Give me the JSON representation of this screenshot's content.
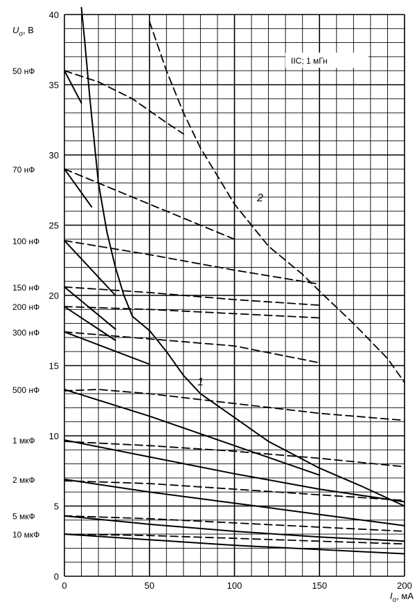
{
  "chart_data": {
    "type": "line",
    "y_axis_label": {
      "main": "U",
      "sub": "o",
      "unit": ", В"
    },
    "x_axis_label": {
      "main": "I",
      "sub": "o",
      "unit": ", мА"
    },
    "xlim": [
      0,
      200
    ],
    "ylim": [
      0,
      40
    ],
    "x_ticks": [
      "0",
      "50",
      "100",
      "150",
      "200"
    ],
    "y_ticks": [
      "0",
      "5",
      "10",
      "15",
      "20",
      "25",
      "30",
      "35",
      "40"
    ],
    "grid": true,
    "legend_box": "IIC; 1 мГн",
    "curve_labels": [
      "1",
      "2"
    ],
    "capacitance_labels": [
      {
        "text": "50 нФ",
        "y": 36.0
      },
      {
        "text": "70 нФ",
        "y": 29.0
      },
      {
        "text": "100 нФ",
        "y": 23.9
      },
      {
        "text": "150 нФ",
        "y": 20.6
      },
      {
        "text": "200 нФ",
        "y": 19.2
      },
      {
        "text": "300 нФ",
        "y": 17.4
      },
      {
        "text": "500 нФ",
        "y": 13.3
      },
      {
        "text": "1 мкФ",
        "y": 9.7
      },
      {
        "text": "2 мкФ",
        "y": 6.9
      },
      {
        "text": "5 мкФ",
        "y": 4.3
      },
      {
        "text": "10 мкФ",
        "y": 3.0
      }
    ],
    "series": [
      {
        "style": "solid",
        "points": [
          [
            10,
            40.5
          ],
          [
            12,
            38
          ],
          [
            15,
            34
          ],
          [
            20,
            28
          ],
          [
            25,
            24.5
          ],
          [
            30,
            22
          ],
          [
            35,
            20
          ],
          [
            40,
            18.5
          ],
          [
            50,
            17.5
          ],
          [
            60,
            16
          ],
          [
            70,
            14.3
          ],
          [
            80,
            13
          ],
          [
            100,
            11.3
          ],
          [
            120,
            9.6
          ],
          [
            150,
            7.7
          ],
          [
            175,
            6.4
          ],
          [
            200,
            5.0
          ]
        ]
      },
      {
        "style": "dashed",
        "points": [
          [
            50,
            39.5
          ],
          [
            60,
            36
          ],
          [
            70,
            33
          ],
          [
            80,
            30.5
          ],
          [
            90,
            28.5
          ],
          [
            100,
            26.5
          ],
          [
            120,
            23.5
          ],
          [
            140,
            21.5
          ],
          [
            150,
            20.3
          ],
          [
            170,
            18
          ],
          [
            190,
            15.5
          ],
          [
            200,
            13.8
          ]
        ]
      },
      {
        "style": "solid",
        "points": [
          [
            0,
            36.0
          ],
          [
            10,
            33.7
          ]
        ]
      },
      {
        "style": "dashed",
        "points": [
          [
            0,
            36.0
          ],
          [
            20,
            35.2
          ],
          [
            40,
            34.0
          ],
          [
            60,
            32.3
          ],
          [
            70,
            31.5
          ]
        ]
      },
      {
        "style": "solid",
        "points": [
          [
            0,
            29.0
          ],
          [
            16,
            26.3
          ]
        ]
      },
      {
        "style": "dashed",
        "points": [
          [
            0,
            29.0
          ],
          [
            50,
            26.5
          ],
          [
            100,
            24.0
          ]
        ]
      },
      {
        "style": "solid",
        "points": [
          [
            0,
            23.9
          ],
          [
            30,
            20.0
          ]
        ]
      },
      {
        "style": "dashed",
        "points": [
          [
            0,
            23.9
          ],
          [
            50,
            22.9
          ],
          [
            100,
            21.8
          ],
          [
            150,
            20.8
          ]
        ]
      },
      {
        "style": "solid",
        "points": [
          [
            0,
            20.6
          ],
          [
            30,
            17.6
          ]
        ]
      },
      {
        "style": "dashed",
        "points": [
          [
            0,
            20.6
          ],
          [
            50,
            20.2
          ],
          [
            100,
            19.7
          ],
          [
            150,
            19.3
          ]
        ]
      },
      {
        "style": "solid",
        "points": [
          [
            0,
            19.2
          ],
          [
            30,
            16.8
          ]
        ]
      },
      {
        "style": "dashed",
        "points": [
          [
            0,
            19.2
          ],
          [
            50,
            19.0
          ],
          [
            100,
            18.7
          ],
          [
            150,
            18.4
          ]
        ]
      },
      {
        "style": "solid",
        "points": [
          [
            0,
            17.4
          ],
          [
            50,
            15.1
          ]
        ]
      },
      {
        "style": "dashed",
        "points": [
          [
            0,
            17.4
          ],
          [
            50,
            16.9
          ],
          [
            100,
            16.4
          ],
          [
            150,
            15.2
          ]
        ]
      },
      {
        "style": "solid",
        "points": [
          [
            0,
            13.3
          ],
          [
            50,
            11.4
          ],
          [
            100,
            9.3
          ],
          [
            150,
            7.2
          ]
        ]
      },
      {
        "style": "dashed",
        "points": [
          [
            0,
            13.2
          ],
          [
            20,
            13.3
          ],
          [
            50,
            13.0
          ],
          [
            100,
            12.3
          ],
          [
            150,
            11.6
          ],
          [
            200,
            11.1
          ]
        ]
      },
      {
        "style": "solid",
        "points": [
          [
            0,
            9.7
          ],
          [
            50,
            8.5
          ],
          [
            100,
            7.3
          ],
          [
            150,
            6.2
          ],
          [
            200,
            5.3
          ]
        ]
      },
      {
        "style": "dashed",
        "points": [
          [
            0,
            9.6
          ],
          [
            50,
            9.3
          ],
          [
            100,
            8.9
          ],
          [
            150,
            8.4
          ],
          [
            200,
            7.8
          ]
        ]
      },
      {
        "style": "solid",
        "points": [
          [
            0,
            6.9
          ],
          [
            50,
            6.0
          ],
          [
            100,
            5.2
          ],
          [
            150,
            4.4
          ],
          [
            200,
            3.6
          ]
        ]
      },
      {
        "style": "dashed",
        "points": [
          [
            0,
            6.8
          ],
          [
            50,
            6.6
          ],
          [
            100,
            6.2
          ],
          [
            150,
            5.8
          ],
          [
            200,
            5.4
          ]
        ]
      },
      {
        "style": "solid",
        "points": [
          [
            0,
            4.3
          ],
          [
            50,
            3.7
          ],
          [
            100,
            3.2
          ],
          [
            150,
            2.8
          ],
          [
            200,
            2.5
          ]
        ]
      },
      {
        "style": "dashed",
        "points": [
          [
            0,
            4.3
          ],
          [
            50,
            4.1
          ],
          [
            100,
            3.8
          ],
          [
            150,
            3.5
          ],
          [
            200,
            3.2
          ]
        ]
      },
      {
        "style": "solid",
        "points": [
          [
            0,
            3.0
          ],
          [
            50,
            2.6
          ],
          [
            100,
            2.2
          ],
          [
            150,
            1.9
          ],
          [
            200,
            1.6
          ]
        ]
      },
      {
        "style": "dashed",
        "points": [
          [
            0,
            3.0
          ],
          [
            50,
            2.9
          ],
          [
            100,
            2.7
          ],
          [
            150,
            2.5
          ],
          [
            200,
            2.3
          ]
        ]
      }
    ]
  }
}
